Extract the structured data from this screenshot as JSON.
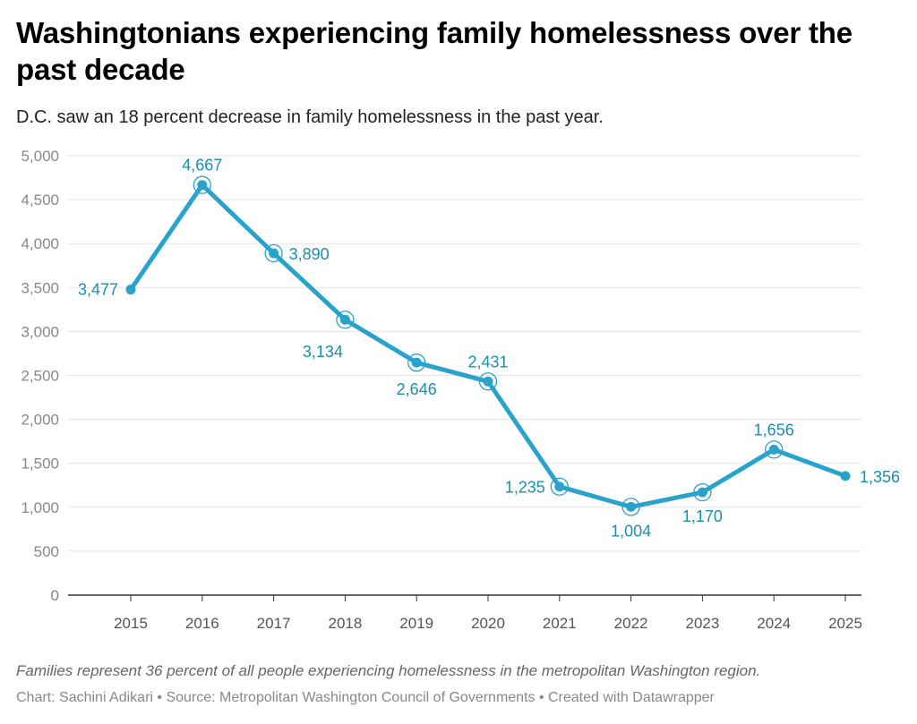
{
  "header": {
    "title": "Washingtonians experiencing family homelessness over the past decade",
    "subtitle": "D.C. saw an 18 percent decrease in family homelessness in the past year."
  },
  "footer": {
    "note": "Families represent 36 percent of all people experiencing homelessness in the metropolitan Washington region.",
    "credits": "Chart: Sachini Adikari • Source: Metropolitan Washington Council of Governments • Created with Datawrapper"
  },
  "chart_data": {
    "type": "line",
    "x": [
      "2015",
      "2016",
      "2017",
      "2018",
      "2019",
      "2020",
      "2021",
      "2022",
      "2023",
      "2024",
      "2025"
    ],
    "values": [
      3477,
      4667,
      3890,
      3134,
      2646,
      2431,
      1235,
      1004,
      1170,
      1656,
      1356
    ],
    "data_labels": [
      "3,477",
      "4,667",
      "3,890",
      "3,134",
      "2,646",
      "2,431",
      "1,235",
      "1,004",
      "1,170",
      "1,656",
      "1,356"
    ],
    "y_ticks": [
      0,
      500,
      1000,
      1500,
      2000,
      2500,
      3000,
      3500,
      4000,
      4500,
      5000
    ],
    "y_tick_labels": [
      "0",
      "500",
      "1,000",
      "1,500",
      "2,000",
      "2,500",
      "3,000",
      "3,500",
      "4,000",
      "4,500",
      "5,000"
    ],
    "ylim": [
      0,
      5000
    ],
    "grid": true,
    "line_color": "#29a3cc",
    "label_color": "#1a8fb0"
  }
}
